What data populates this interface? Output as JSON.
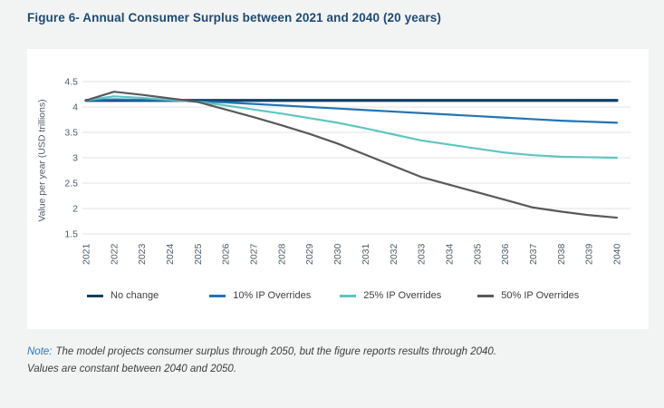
{
  "page": {
    "title": "Figure 6- Annual Consumer Surplus between 2021 and 2040 (20 years)",
    "note_label": "Note:",
    "note_line1": "The model projects consumer surplus through 2050, but the figure reports results through 2040.",
    "note_line2": "Values are constant between 2040 and 2050."
  },
  "colors": {
    "page_bg": "#F2F3F3",
    "card_bg": "#FFFFFF",
    "title_text": "#1C4B73",
    "grid": "#E3E3E3",
    "tick_text": "#4F5A68",
    "note_label": "#2E75B6",
    "note_text": "#3E3E3E"
  },
  "chart_data": {
    "type": "line",
    "title": "",
    "xlabel": "",
    "ylabel": "Value per year (USD trillions)",
    "ylim": [
      1.5,
      4.5
    ],
    "grid": true,
    "legend_position": "bottom",
    "yticks": [
      {
        "label": "4.5",
        "value": 4.5
      },
      {
        "label": "4",
        "value": 4.0
      },
      {
        "label": "3.5",
        "value": 3.5
      },
      {
        "label": "3",
        "value": 3.0
      },
      {
        "label": "2.5",
        "value": 2.5
      },
      {
        "label": "2",
        "value": 2.0
      },
      {
        "label": "1.5",
        "value": 1.5
      }
    ],
    "x": [
      "2021",
      "2022",
      "2023",
      "2024",
      "2025",
      "2026",
      "2027",
      "2028",
      "2029",
      "2030",
      "2031",
      "2032",
      "2033",
      "2034",
      "2035",
      "2036",
      "2037",
      "2038",
      "2039",
      "2040"
    ],
    "series": [
      {
        "name": "No change",
        "color": "#133F63",
        "line_width": 3.2,
        "values": [
          4.13,
          4.13,
          4.13,
          4.13,
          4.13,
          4.13,
          4.13,
          4.13,
          4.13,
          4.13,
          4.13,
          4.13,
          4.13,
          4.13,
          4.13,
          4.13,
          4.13,
          4.13,
          4.13,
          4.13
        ]
      },
      {
        "name": "10% IP Overrides",
        "color": "#2274B5",
        "line_width": 2.2,
        "values": [
          4.13,
          4.15,
          4.14,
          4.13,
          4.11,
          4.09,
          4.06,
          4.03,
          4.0,
          3.97,
          3.94,
          3.91,
          3.88,
          3.85,
          3.82,
          3.79,
          3.76,
          3.73,
          3.71,
          3.69
        ]
      },
      {
        "name": "25% IP Overrides",
        "color": "#5FC5C2",
        "line_width": 2.2,
        "values": [
          4.13,
          4.21,
          4.18,
          4.14,
          4.1,
          4.03,
          3.95,
          3.87,
          3.78,
          3.69,
          3.58,
          3.46,
          3.34,
          3.26,
          3.18,
          3.1,
          3.05,
          3.02,
          3.01,
          3.0
        ]
      },
      {
        "name": "50% IP Overrides",
        "color": "#58595B",
        "line_width": 2.2,
        "values": [
          4.13,
          4.3,
          4.24,
          4.17,
          4.1,
          3.95,
          3.8,
          3.64,
          3.47,
          3.28,
          3.06,
          2.84,
          2.62,
          2.47,
          2.32,
          2.17,
          2.02,
          1.94,
          1.87,
          1.82
        ]
      }
    ]
  }
}
